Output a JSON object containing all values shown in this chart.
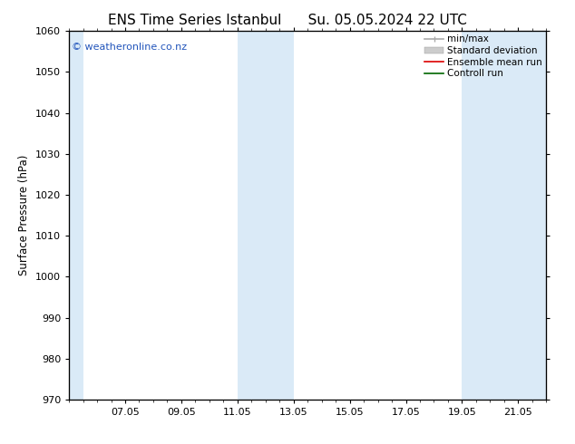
{
  "title_left": "ENS Time Series Istanbul",
  "title_right": "Su. 05.05.2024 22 UTC",
  "ylabel": "Surface Pressure (hPa)",
  "ylim": [
    970,
    1060
  ],
  "yticks": [
    970,
    980,
    990,
    1000,
    1010,
    1020,
    1030,
    1040,
    1050,
    1060
  ],
  "x_min": 0.0,
  "x_max": 17.0,
  "xtick_labels": [
    "07.05",
    "09.05",
    "11.05",
    "13.05",
    "15.05",
    "17.05",
    "19.05",
    "21.05"
  ],
  "xtick_positions": [
    2,
    4,
    6,
    8,
    10,
    12,
    14,
    16
  ],
  "shaded_bands": [
    {
      "x_start": -0.1,
      "x_end": 0.5
    },
    {
      "x_start": 6.0,
      "x_end": 8.0
    },
    {
      "x_start": 14.0,
      "x_end": 17.0
    }
  ],
  "shaded_color": "#daeaf7",
  "watermark_text": "© weatheronline.co.nz",
  "watermark_color": "#2255bb",
  "legend_entries": [
    {
      "label": "min/max",
      "color": "#aaaaaa",
      "lw": 1.2,
      "type": "line_caps"
    },
    {
      "label": "Standard deviation",
      "color": "#cccccc",
      "lw": 8,
      "type": "band"
    },
    {
      "label": "Ensemble mean run",
      "color": "#dd0000",
      "lw": 1.2,
      "type": "line"
    },
    {
      "label": "Controll run",
      "color": "#006600",
      "lw": 1.2,
      "type": "line"
    }
  ],
  "bg_color": "#ffffff",
  "title_fontsize": 11,
  "label_fontsize": 8.5,
  "tick_fontsize": 8,
  "legend_fontsize": 7.5,
  "watermark_fontsize": 8
}
